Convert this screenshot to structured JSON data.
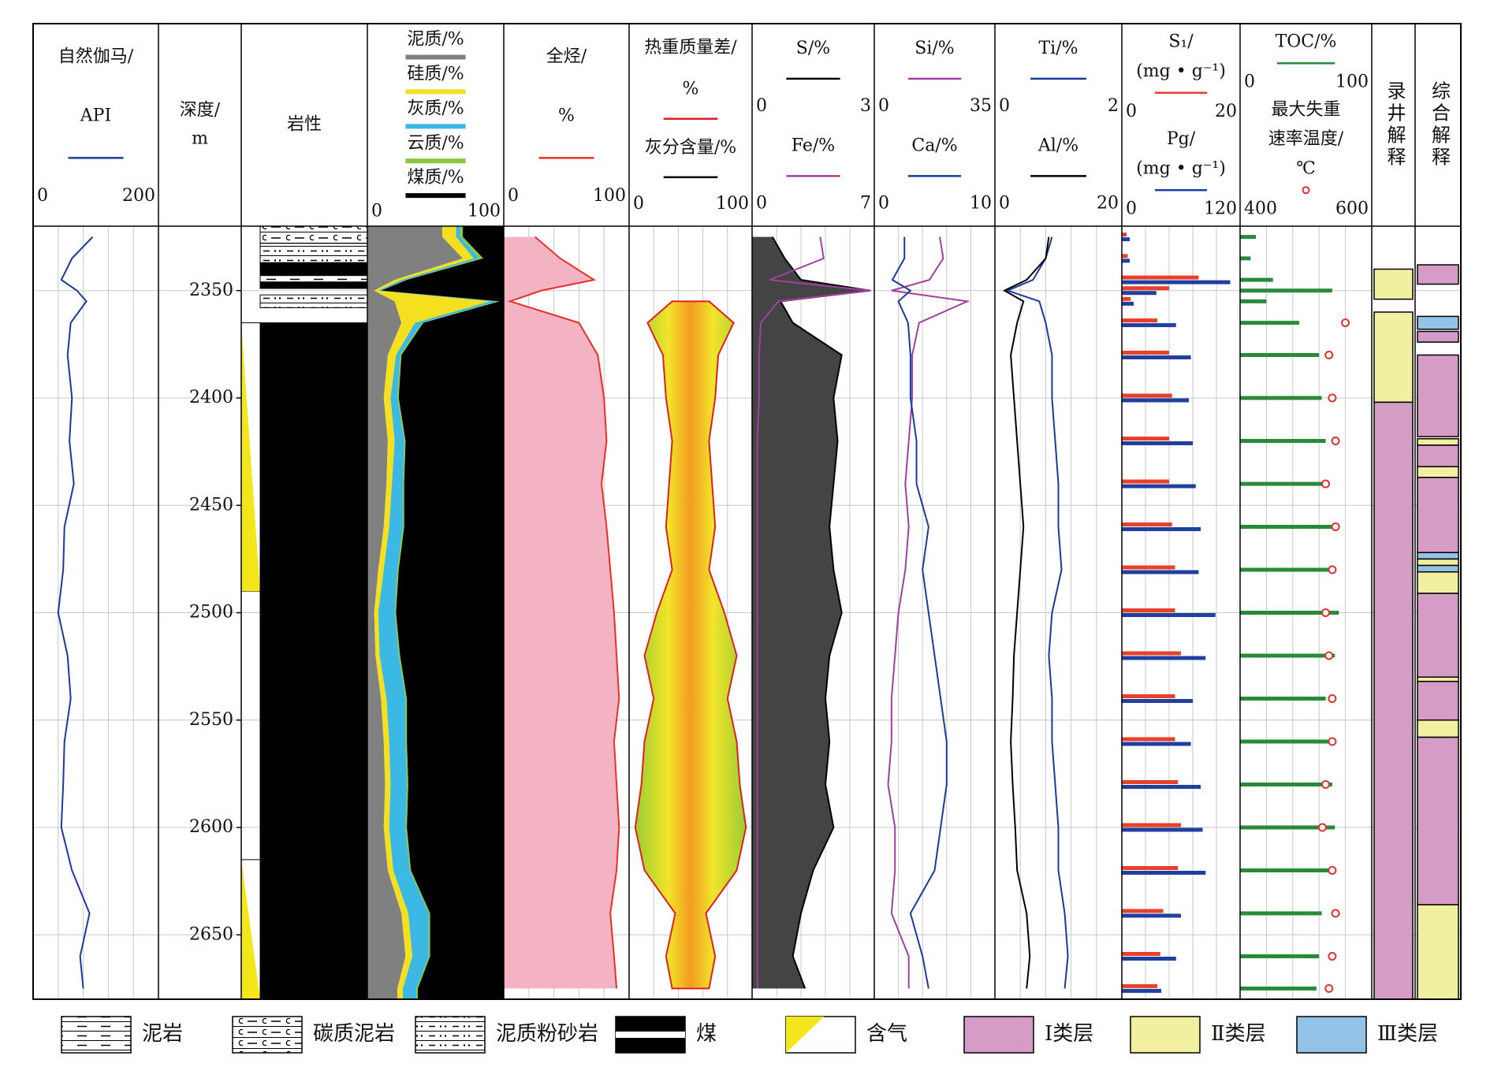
{
  "chart_data": {
    "type": "well_log",
    "depth": [
      2325,
      2335,
      2345,
      2350,
      2355,
      2365,
      2380,
      2400,
      2420,
      2440,
      2460,
      2480,
      2500,
      2520,
      2540,
      2560,
      2580,
      2600,
      2620,
      2640,
      2660,
      2675
    ],
    "ylim": [
      2320,
      2680
    ],
    "yticks": [
      2350,
      2400,
      2450,
      2500,
      2550,
      2600,
      2650
    ],
    "grid": true,
    "tracks": [
      {
        "kind": "curves",
        "grid": true,
        "xlim": [
          0,
          200
        ],
        "xticks": [
          0,
          200
        ],
        "curves": [
          {
            "label_lines": [
              "自然伽马/",
              "API"
            ],
            "style": "line",
            "color": "#1b3a9a",
            "values": [
              95,
              62,
              45,
              70,
              85,
              60,
              55,
              62,
              58,
              65,
              50,
              48,
              40,
              55,
              60,
              50,
              48,
              45,
              62,
              90,
              75,
              80
            ]
          }
        ]
      },
      {
        "kind": "depth",
        "label_lines": [
          "深度/",
          "m"
        ]
      },
      {
        "kind": "lithology",
        "label_lines": [
          "岩性"
        ],
        "intervals": {
          "top": [
            2320,
            2328,
            2337,
            2343,
            2346,
            2352,
            2365
          ],
          "bottom": [
            2328,
            2337,
            2343,
            2346,
            2349,
            2358,
            2680
          ],
          "class": [
            "碳质泥岩",
            "泥质粉砂岩",
            "煤",
            "泥岩",
            "煤",
            "泥质粉砂岩",
            "煤"
          ]
        },
        "gas": {
          "top": [
            2365,
            2615
          ],
          "bottom": [
            2490,
            2680
          ]
        }
      },
      {
        "kind": "curves",
        "grid": false,
        "xlim": [
          0,
          100
        ],
        "xticks": [
          0,
          100
        ],
        "curves": [
          {
            "label_lines": [
              "泥质/%"
            ],
            "style": "stack",
            "color": "#808080",
            "values": [
              55,
              70,
              20,
              5,
              20,
              25,
              15,
              12,
              15,
              14,
              12,
              8,
              5,
              6,
              10,
              12,
              13,
              12,
              15,
              25,
              28,
              22
            ]
          },
          {
            "label_lines": [
              "硅质/%"
            ],
            "style": "stack",
            "color": "#f5e020",
            "values": [
              10,
              8,
              5,
              3,
              70,
              10,
              6,
              5,
              5,
              4,
              4,
              4,
              3,
              3,
              4,
              4,
              4,
              4,
              4,
              5,
              5,
              4
            ]
          },
          {
            "label_lines": [
              "灰质/%"
            ],
            "style": "stack",
            "color": "#3cb8e4",
            "values": [
              3,
              4,
              3,
              2,
              5,
              5,
              3,
              5,
              7,
              8,
              10,
              10,
              12,
              14,
              14,
              12,
              12,
              12,
              12,
              15,
              12,
              10
            ]
          },
          {
            "label_lines": [
              "云质/%"
            ],
            "style": "stack",
            "color": "#8cc63f",
            "values": [
              2,
              3,
              1,
              0,
              2,
              1,
              1,
              1,
              1,
              1,
              1,
              1,
              1,
              1,
              1,
              1,
              1,
              1,
              1,
              1,
              1,
              1
            ]
          },
          {
            "label_lines": [
              "煤质/%"
            ],
            "style": "stack",
            "color": "#000000",
            "values": [
              30,
              15,
              71,
              90,
              3,
              59,
              75,
              77,
              72,
              73,
              73,
              77,
              79,
              76,
              71,
              71,
              70,
              71,
              68,
              54,
              54,
              63
            ]
          }
        ]
      },
      {
        "kind": "curves",
        "grid": true,
        "xlim": [
          0,
          100
        ],
        "xticks": [
          0,
          100
        ],
        "curves": [
          {
            "label_lines": [
              "全烃/",
              "%"
            ],
            "style": "line",
            "color": "#e8302a",
            "fill": "#f4b3c2",
            "values": [
              25,
              45,
              72,
              30,
              5,
              60,
              75,
              80,
              82,
              78,
              82,
              85,
              88,
              90,
              92,
              88,
              90,
              92,
              90,
              85,
              88,
              90
            ]
          }
        ]
      },
      {
        "kind": "curves",
        "grid": true,
        "xlim": [
          0,
          100
        ],
        "xticks": [
          0,
          100
        ],
        "curves": [
          {
            "label_lines": [
              "热重质量差/",
              "%"
            ],
            "style": "symmetric",
            "color": "#e02020",
            "values": [
              null,
              null,
              null,
              null,
              30,
              70,
              45,
              40,
              30,
              35,
              40,
              30,
              55,
              75,
              60,
              75,
              80,
              90,
              75,
              25,
              40,
              30
            ]
          },
          {
            "label_lines": [
              "灰分含量/%"
            ],
            "style": "line",
            "color": "#000000"
          }
        ]
      },
      {
        "kind": "curves",
        "grid": true,
        "curves": [
          {
            "label_lines": [
              "S/%"
            ],
            "style": "line",
            "color": "#000000",
            "fill": "#444444",
            "xlim": [
              0,
              3
            ],
            "xticks": [
              0,
              3
            ],
            "values": [
              0.5,
              0.8,
              1.2,
              2.9,
              0.7,
              1.0,
              2.2,
              2.0,
              2.1,
              2.0,
              1.9,
              2.0,
              2.2,
              1.9,
              1.8,
              1.9,
              1.8,
              2.0,
              1.5,
              1.2,
              1.0,
              1.3
            ]
          },
          {
            "label_lines": [
              "Fe/%"
            ],
            "style": "line",
            "color": "#a040a0",
            "xlim": [
              0,
              7
            ],
            "xticks": [
              0,
              7
            ],
            "values": [
              3.9,
              4.1,
              1.0,
              6.8,
              1.5,
              0.5,
              0.4,
              0.4,
              0.3,
              0.3,
              0.3,
              0.3,
              0.3,
              0.3,
              0.3,
              0.3,
              0.3,
              0.3,
              0.3,
              0.3,
              0.3,
              0.3
            ]
          }
        ]
      },
      {
        "kind": "curves",
        "grid": true,
        "curves": [
          {
            "label_lines": [
              "Si/%"
            ],
            "style": "line",
            "color": "#a040a0",
            "xlim": [
              0,
              35
            ],
            "xticks": [
              0,
              35
            ],
            "values": [
              19,
              20,
              16,
              5,
              27,
              13,
              11,
              11,
              10,
              9,
              10,
              9,
              7,
              6,
              5,
              5,
              4,
              6,
              6,
              5,
              10,
              10
            ]
          },
          {
            "label_lines": [
              "Ca/%"
            ],
            "style": "line",
            "color": "#1b3a9a",
            "xlim": [
              0,
              10
            ],
            "xticks": [
              0,
              10
            ],
            "values": [
              2.5,
              2.5,
              1.5,
              3.0,
              2.0,
              2.8,
              3.0,
              3.0,
              3.5,
              3.5,
              4.5,
              4.0,
              4.5,
              5.0,
              5.5,
              6.0,
              6.0,
              5.5,
              5.0,
              3.0,
              4.0,
              4.5
            ]
          }
        ]
      },
      {
        "kind": "curves",
        "grid": true,
        "curves": [
          {
            "label_lines": [
              "Ti/%"
            ],
            "style": "line",
            "color": "#1b3a9a",
            "xlim": [
              0,
              2
            ],
            "xticks": [
              0,
              2
            ],
            "values": [
              0.9,
              0.8,
              0.6,
              0.2,
              0.7,
              0.8,
              0.9,
              0.9,
              0.95,
              1.0,
              1.0,
              1.05,
              0.9,
              0.85,
              0.9,
              0.9,
              0.95,
              1.0,
              1.0,
              1.1,
              1.15,
              1.1
            ]
          },
          {
            "label_lines": [
              "Al/%"
            ],
            "style": "line",
            "color": "#000000",
            "xlim": [
              0,
              20
            ],
            "xticks": [
              0,
              20
            ],
            "values": [
              8.5,
              8,
              5,
              1.5,
              4.5,
              3.5,
              2.5,
              3.0,
              3.5,
              4.0,
              4.5,
              4.0,
              3.5,
              3.0,
              2.8,
              2.5,
              2.8,
              3.2,
              3.5,
              5.0,
              5.5,
              5.0
            ]
          }
        ]
      },
      {
        "kind": "curves",
        "grid": true,
        "curves": [
          {
            "label_lines": [
              "S₁/",
              "(mg • g⁻¹)"
            ],
            "style": "bars",
            "color": "#e8402a",
            "xlim": [
              0,
              20
            ],
            "xticks": [
              0,
              20
            ],
            "values": [
              0.8,
              1.0,
              13,
              8,
              1.5,
              6,
              8,
              8.5,
              8,
              8,
              8.5,
              9,
              9,
              10,
              9,
              9,
              9.5,
              10,
              9.5,
              7,
              6.5,
              6
            ]
          },
          {
            "label_lines": [
              "Pg/",
              "(mg • g⁻¹)"
            ],
            "style": "bars",
            "color": "#2040a0",
            "xlim": [
              0,
              120
            ],
            "xticks": [
              0,
              120
            ],
            "values": [
              8,
              8,
              110,
              35,
              12,
              55,
              70,
              68,
              72,
              75,
              80,
              78,
              95,
              85,
              72,
              70,
              80,
              82,
              85,
              60,
              55,
              40
            ]
          }
        ]
      },
      {
        "kind": "curves",
        "grid": true,
        "curves": [
          {
            "label_lines": [
              "TOC/%"
            ],
            "style": "bars",
            "color": "#2a8a3a",
            "xlim": [
              0,
              100
            ],
            "xticks": [
              0,
              100
            ],
            "values": [
              12,
              8,
              25,
              70,
              20,
              45,
              60,
              62,
              65,
              68,
              70,
              70,
              75,
              72,
              65,
              68,
              70,
              72,
              70,
              62,
              60,
              58
            ]
          },
          {
            "label_lines": [
              "最大失重",
              "速率温度/",
              "℃"
            ],
            "style": "dots",
            "color": "#e03030",
            "xlim": [
              400,
              600
            ],
            "xticks": [
              400,
              600
            ],
            "values": [
              null,
              null,
              null,
              null,
              null,
              560,
              535,
              540,
              545,
              530,
              545,
              540,
              530,
              535,
              540,
              540,
              530,
              525,
              540,
              545,
              540,
              535
            ]
          }
        ]
      },
      {
        "kind": "interpretation",
        "label": "录井解释",
        "intervals": {
          "top": [
            2340,
            2360,
            2402
          ],
          "bottom": [
            2354,
            2402,
            2680
          ],
          "class": [
            "Ⅱ类层",
            "Ⅱ类层",
            "Ⅰ类层"
          ]
        }
      },
      {
        "kind": "interpretation",
        "label": "综合解释",
        "intervals": {
          "top": [
            2338,
            2362,
            2369,
            2380,
            2419,
            2422,
            2432,
            2437,
            2472,
            2475,
            2478,
            2481,
            2491,
            2530,
            2532,
            2550,
            2558,
            2636
          ],
          "bottom": [
            2347,
            2368,
            2374,
            2418,
            2422,
            2432,
            2437,
            2472,
            2475,
            2478,
            2481,
            2491,
            2530,
            2532,
            2550,
            2558,
            2636,
            2680
          ],
          "class": [
            "Ⅰ类层",
            "Ⅲ类层",
            "Ⅰ类层",
            "Ⅰ类层",
            "Ⅱ类层",
            "Ⅰ类层",
            "Ⅱ类层",
            "Ⅰ类层",
            "Ⅲ类层",
            "Ⅱ类层",
            "Ⅲ类层",
            "Ⅱ类层",
            "Ⅰ类层",
            "Ⅱ类层",
            "Ⅰ类层",
            "Ⅱ类层",
            "Ⅰ类层",
            "Ⅱ类层"
          ]
        }
      }
    ],
    "legend": {
      "lithology": [
        "泥岩",
        "碳质泥岩",
        "泥质粉砂岩",
        "煤",
        "含气"
      ],
      "classes": [
        {
          "label": "Ⅰ类层",
          "color": "#d59cc6"
        },
        {
          "label": "Ⅱ类层",
          "color": "#f0f0a0"
        },
        {
          "label": "Ⅲ类层",
          "color": "#93c4e8"
        }
      ]
    }
  }
}
